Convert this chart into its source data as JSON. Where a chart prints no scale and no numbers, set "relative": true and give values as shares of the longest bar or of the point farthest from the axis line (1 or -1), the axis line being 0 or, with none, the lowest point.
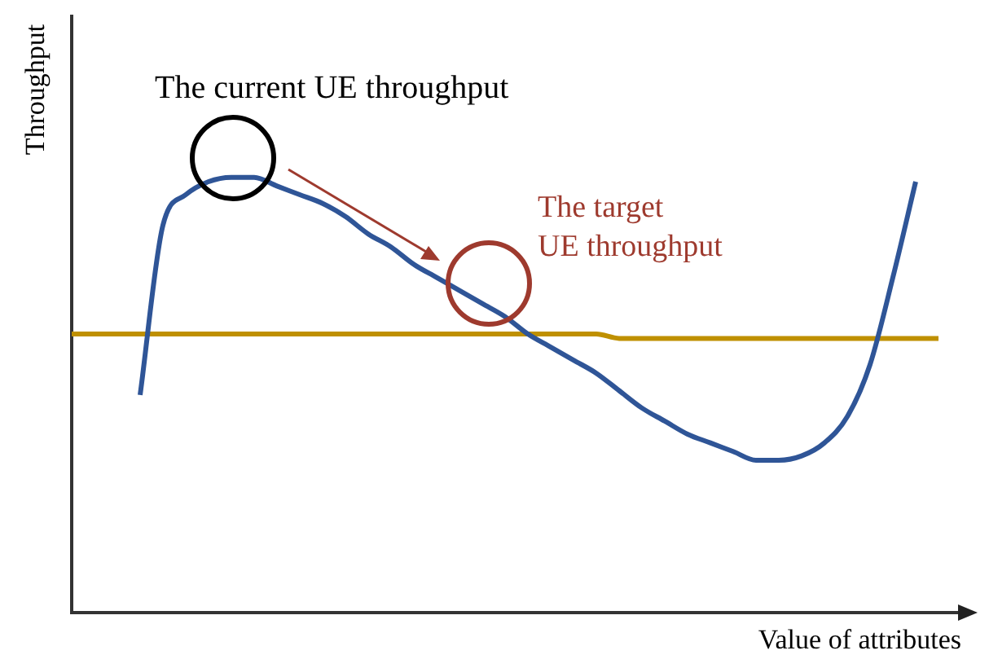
{
  "chart_data": {
    "type": "line",
    "relative": true,
    "xlabel": "Value of attributes",
    "ylabel": "Throughput",
    "legend": false,
    "tick_labels": false,
    "marker": "none",
    "grid": false,
    "annotations": [
      "The current UE throughput",
      "The target\nUE throughput"
    ],
    "categories": [
      null,
      null,
      null,
      null,
      null,
      null,
      null,
      null,
      null,
      null,
      null,
      null,
      null,
      null,
      null,
      null,
      null,
      null,
      null,
      null,
      null,
      null,
      null,
      null,
      null,
      null,
      null,
      null,
      null,
      null,
      null,
      null,
      null,
      null,
      null,
      null,
      null,
      null,
      null,
      null
    ],
    "series": [
      {
        "color": "#2f5597",
        "values": [
          null,
          null,
          null,
          0.5,
          0.89,
          0.96,
          0.99,
          1.0,
          1.0,
          0.98,
          0.96,
          0.94,
          0.91,
          0.87,
          0.84,
          0.8,
          0.77,
          0.74,
          0.71,
          0.68,
          0.64,
          0.61,
          0.58,
          0.55,
          0.51,
          0.47,
          0.44,
          0.41,
          0.39,
          0.37,
          0.35,
          0.35,
          0.36,
          0.39,
          0.45,
          0.57,
          0.77,
          0.99,
          null,
          null
        ]
      },
      {
        "color": "#bf9000",
        "values": [
          0.64,
          0.64,
          0.64,
          0.64,
          0.64,
          0.64,
          0.64,
          0.64,
          0.64,
          0.64,
          0.64,
          0.64,
          0.64,
          0.64,
          0.64,
          0.64,
          0.64,
          0.64,
          0.64,
          0.64,
          0.64,
          0.64,
          0.64,
          0.64,
          0.63,
          0.63,
          0.63,
          0.63,
          0.63,
          0.63,
          0.63,
          0.63,
          0.63,
          0.63,
          0.63,
          0.63,
          0.63,
          0.63,
          0.63,
          null
        ]
      }
    ]
  }
}
